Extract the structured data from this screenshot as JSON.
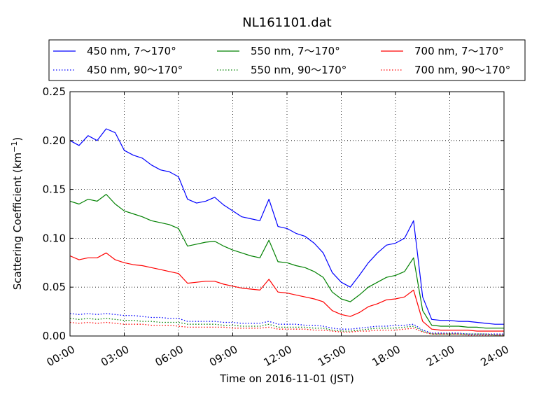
{
  "chart_data": {
    "type": "line",
    "title": "NL161101.dat",
    "xlabel": "Time on 2016-11-01 (JST)",
    "ylabel": "Scattering Coefficient (km",
    "ylabel_sup": "−1",
    "ylabel_close": ")",
    "xlim": [
      "00:00",
      "24:00"
    ],
    "ylim": [
      0,
      0.25
    ],
    "grid": true,
    "legend_position": "top",
    "xticks": [
      "00:00",
      "03:00",
      "06:00",
      "09:00",
      "12:00",
      "15:00",
      "18:00",
      "21:00",
      "24:00"
    ],
    "yticks": [
      "0.00",
      "0.05",
      "0.10",
      "0.15",
      "0.20",
      "0.25"
    ],
    "x": [
      "00:00",
      "00:30",
      "01:00",
      "01:30",
      "02:00",
      "02:30",
      "03:00",
      "03:30",
      "04:00",
      "04:30",
      "05:00",
      "05:30",
      "06:00",
      "06:30",
      "07:00",
      "07:30",
      "08:00",
      "08:30",
      "09:00",
      "09:30",
      "10:00",
      "10:30",
      "11:00",
      "11:30",
      "12:00",
      "12:30",
      "13:00",
      "13:30",
      "14:00",
      "14:30",
      "15:00",
      "15:30",
      "16:00",
      "16:30",
      "17:00",
      "17:30",
      "18:00",
      "18:30",
      "19:00",
      "19:30",
      "20:00",
      "20:30",
      "21:00",
      "21:30",
      "22:00",
      "22:30",
      "23:00",
      "23:30",
      "24:00"
    ],
    "series": [
      {
        "name": "450 nm, 7～170°",
        "color": "#0000ff",
        "style": "solid",
        "values": [
          0.2,
          0.195,
          0.205,
          0.2,
          0.212,
          0.208,
          0.19,
          0.185,
          0.182,
          0.175,
          0.17,
          0.168,
          0.163,
          0.14,
          0.136,
          0.138,
          0.142,
          0.134,
          0.128,
          0.122,
          0.12,
          0.118,
          0.14,
          0.112,
          0.11,
          0.105,
          0.102,
          0.095,
          0.085,
          0.065,
          0.055,
          0.05,
          0.062,
          0.075,
          0.085,
          0.093,
          0.095,
          0.1,
          0.118,
          0.04,
          0.017,
          0.016,
          0.016,
          0.015,
          0.015,
          0.014,
          0.013,
          0.012,
          0.012
        ]
      },
      {
        "name": "550 nm, 7～170°",
        "color": "#008000",
        "style": "solid",
        "values": [
          0.138,
          0.135,
          0.14,
          0.138,
          0.145,
          0.135,
          0.128,
          0.125,
          0.122,
          0.118,
          0.116,
          0.114,
          0.11,
          0.092,
          0.094,
          0.096,
          0.097,
          0.092,
          0.088,
          0.085,
          0.082,
          0.08,
          0.098,
          0.076,
          0.075,
          0.072,
          0.07,
          0.066,
          0.06,
          0.045,
          0.038,
          0.035,
          0.042,
          0.05,
          0.055,
          0.06,
          0.062,
          0.066,
          0.08,
          0.026,
          0.011,
          0.01,
          0.01,
          0.01,
          0.009,
          0.009,
          0.008,
          0.008,
          0.008
        ]
      },
      {
        "name": "700 nm, 7～170°",
        "color": "#ff0000",
        "style": "solid",
        "values": [
          0.082,
          0.078,
          0.08,
          0.08,
          0.085,
          0.078,
          0.075,
          0.073,
          0.072,
          0.07,
          0.068,
          0.066,
          0.064,
          0.054,
          0.055,
          0.056,
          0.056,
          0.053,
          0.051,
          0.049,
          0.048,
          0.047,
          0.058,
          0.045,
          0.044,
          0.042,
          0.04,
          0.038,
          0.035,
          0.026,
          0.022,
          0.02,
          0.024,
          0.03,
          0.033,
          0.037,
          0.038,
          0.04,
          0.047,
          0.015,
          0.007,
          0.006,
          0.006,
          0.006,
          0.006,
          0.005,
          0.005,
          0.005,
          0.005
        ]
      },
      {
        "name": "450 nm, 90～170°",
        "color": "#0000ff",
        "style": "dotted",
        "values": [
          0.023,
          0.022,
          0.023,
          0.022,
          0.023,
          0.022,
          0.021,
          0.021,
          0.02,
          0.019,
          0.019,
          0.018,
          0.018,
          0.015,
          0.015,
          0.015,
          0.015,
          0.014,
          0.014,
          0.013,
          0.013,
          0.013,
          0.015,
          0.012,
          0.012,
          0.012,
          0.011,
          0.011,
          0.01,
          0.008,
          0.007,
          0.007,
          0.008,
          0.009,
          0.01,
          0.01,
          0.011,
          0.011,
          0.012,
          0.006,
          0.003,
          0.003,
          0.003,
          0.003,
          0.002,
          0.002,
          0.002,
          0.002,
          0.002
        ]
      },
      {
        "name": "550 nm, 90～170°",
        "color": "#008000",
        "style": "dotted",
        "values": [
          0.018,
          0.017,
          0.018,
          0.017,
          0.018,
          0.017,
          0.016,
          0.016,
          0.015,
          0.015,
          0.014,
          0.014,
          0.014,
          0.012,
          0.012,
          0.012,
          0.012,
          0.011,
          0.011,
          0.01,
          0.01,
          0.01,
          0.012,
          0.009,
          0.009,
          0.009,
          0.009,
          0.008,
          0.008,
          0.006,
          0.005,
          0.005,
          0.006,
          0.007,
          0.008,
          0.008,
          0.008,
          0.009,
          0.01,
          0.005,
          0.002,
          0.002,
          0.002,
          0.002,
          0.002,
          0.002,
          0.002,
          0.001,
          0.001
        ]
      },
      {
        "name": "700 nm, 90～170°",
        "color": "#ff0000",
        "style": "dotted",
        "values": [
          0.014,
          0.013,
          0.014,
          0.013,
          0.014,
          0.013,
          0.012,
          0.012,
          0.012,
          0.011,
          0.011,
          0.011,
          0.01,
          0.009,
          0.009,
          0.009,
          0.009,
          0.009,
          0.008,
          0.008,
          0.008,
          0.008,
          0.009,
          0.007,
          0.007,
          0.007,
          0.007,
          0.006,
          0.006,
          0.005,
          0.004,
          0.004,
          0.005,
          0.005,
          0.006,
          0.006,
          0.006,
          0.007,
          0.008,
          0.004,
          0.002,
          0.002,
          0.002,
          0.002,
          0.001,
          0.001,
          0.001,
          0.001,
          0.001
        ]
      }
    ]
  }
}
